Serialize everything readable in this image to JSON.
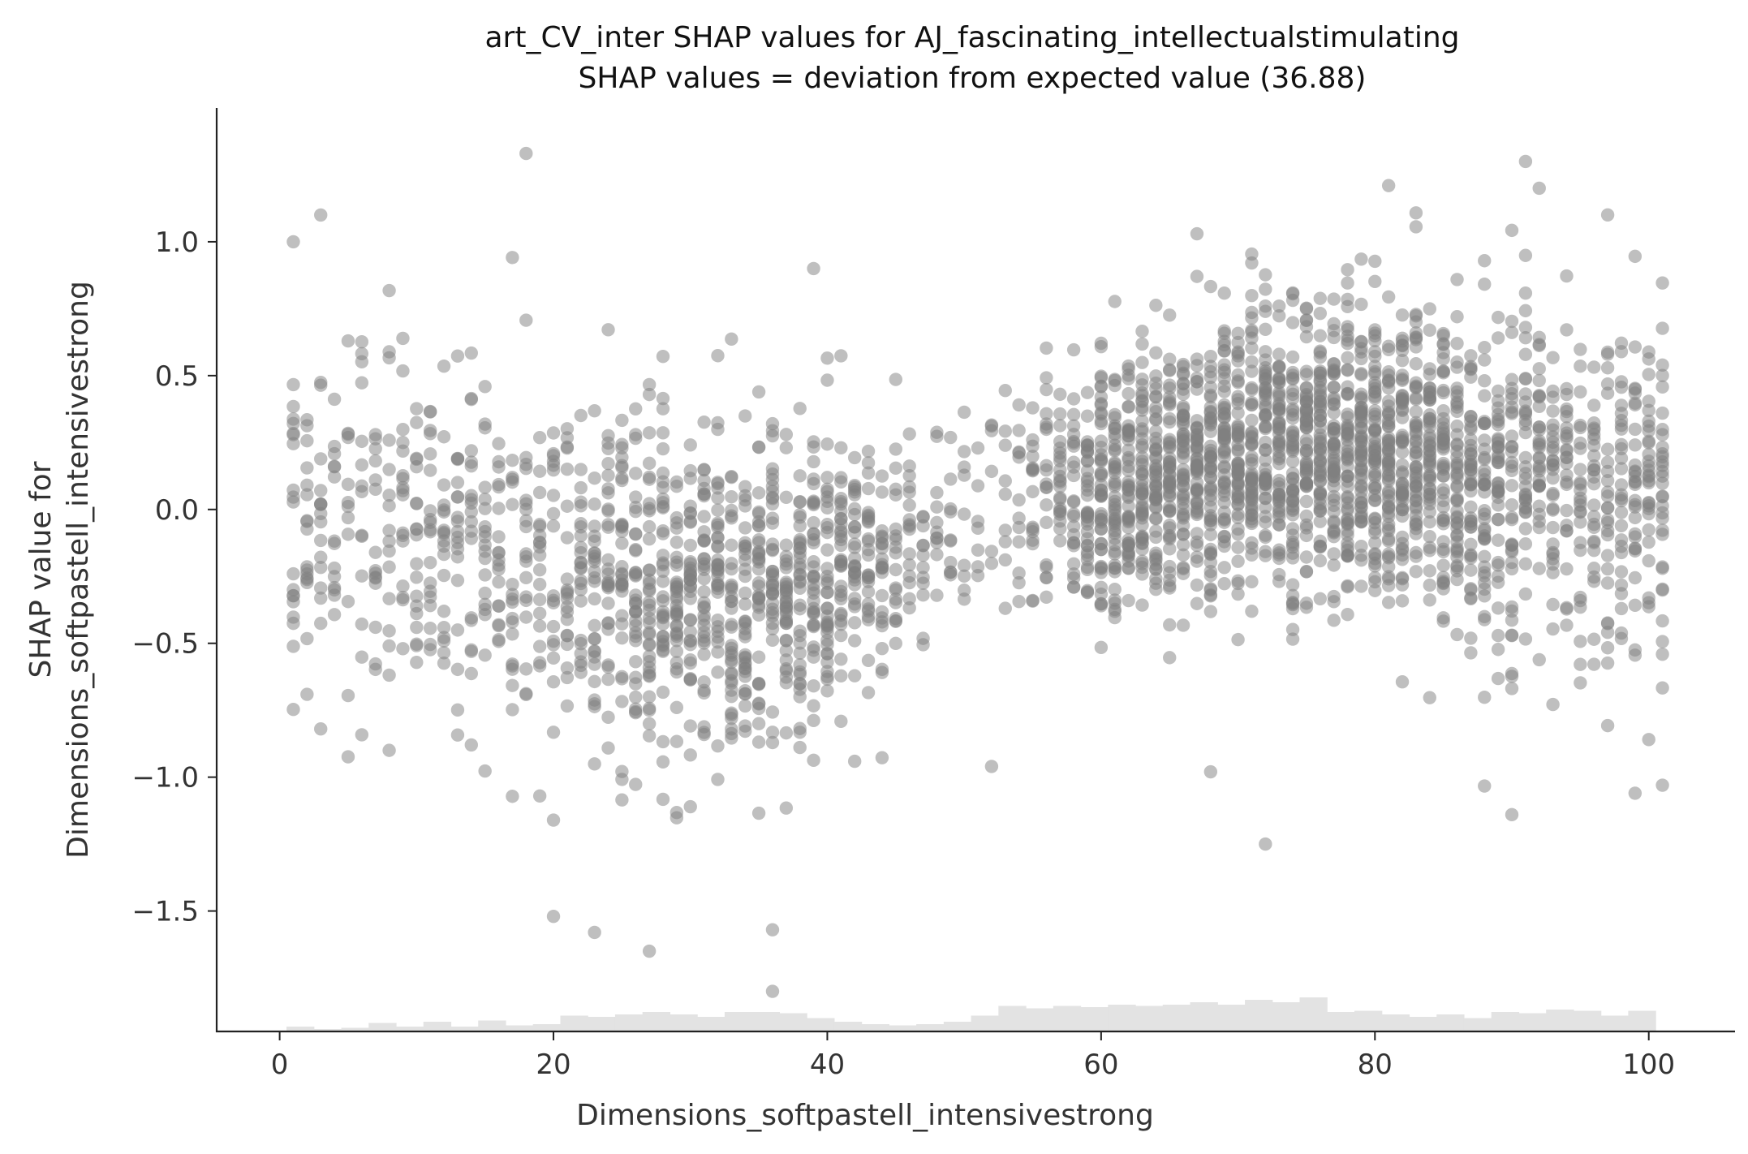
{
  "chart_data": {
    "type": "scatter",
    "title_line1": "art_CV_inter SHAP values for AJ_fascinating_intellectualstimulating",
    "title_line2": "SHAP values = deviation from expected value (36.88)",
    "xlabel": "Dimensions_softpastell_intensivestrong",
    "ylabel_line1": "SHAP value for",
    "ylabel_line2": "Dimensions_softpastell_intensivestrong",
    "xlim": [
      -4.6,
      106.3
    ],
    "ylim": [
      -1.95,
      1.5
    ],
    "x_ticks": [
      0,
      20,
      40,
      60,
      80,
      100
    ],
    "x_tick_labels": [
      "0",
      "20",
      "40",
      "60",
      "80",
      "100"
    ],
    "y_ticks": [
      1.0,
      0.5,
      0.0,
      -0.5,
      -1.0,
      -1.5
    ],
    "y_tick_labels": [
      "1.0",
      "0.5",
      "0.0",
      "−0.5",
      "−1.0",
      "−1.5"
    ],
    "grid": false,
    "legend": "none",
    "point_color": "#7f7f7f",
    "histogram_color": "#e3e3e3",
    "x_range_of_points": [
      1,
      101
    ],
    "trend_knots": {
      "x": [
        1,
        10,
        20,
        30,
        38,
        45,
        50,
        55,
        60,
        70,
        78,
        85,
        95,
        101
      ],
      "y": [
        -0.05,
        -0.08,
        -0.2,
        -0.3,
        -0.28,
        -0.15,
        -0.02,
        0.05,
        0.08,
        0.2,
        0.25,
        0.15,
        0.08,
        0.05
      ]
    },
    "spread_knots": {
      "x": [
        1,
        20,
        35,
        45,
        50,
        60,
        80,
        101
      ],
      "y": [
        0.36,
        0.34,
        0.33,
        0.22,
        0.18,
        0.24,
        0.27,
        0.34
      ]
    },
    "density_knots": {
      "x": [
        1,
        5,
        10,
        20,
        27,
        40,
        47,
        52,
        58,
        60,
        70,
        80,
        85,
        95,
        101
      ],
      "y": [
        3,
        2,
        3,
        3,
        6,
        6,
        2,
        1,
        4,
        8,
        9,
        10,
        8,
        4,
        5
      ]
    },
    "notable_points": [
      {
        "x": 18,
        "y": 1.33
      },
      {
        "x": 91,
        "y": 1.3
      },
      {
        "x": 92,
        "y": 1.2
      },
      {
        "x": 81,
        "y": 1.21
      },
      {
        "x": 3,
        "y": 1.1
      },
      {
        "x": 36,
        "y": -1.8
      },
      {
        "x": 27,
        "y": -1.65
      },
      {
        "x": 20,
        "y": -1.52
      },
      {
        "x": 36,
        "y": -1.57
      },
      {
        "x": 23,
        "y": -1.58
      },
      {
        "x": 72,
        "y": -1.25
      },
      {
        "x": 99,
        "y": -1.06
      },
      {
        "x": 101,
        "y": -1.03
      },
      {
        "x": 52,
        "y": -0.96
      },
      {
        "x": 68,
        "y": -0.98
      },
      {
        "x": 1,
        "y": 1.0
      },
      {
        "x": 67,
        "y": 1.03
      },
      {
        "x": 39,
        "y": 0.9
      }
    ],
    "histogram": {
      "bin_width": 2,
      "start": 0.5,
      "counts": [
        4,
        2,
        3,
        7,
        4,
        8,
        4,
        9,
        5,
        6,
        13,
        12,
        14,
        16,
        14,
        12,
        16,
        16,
        15,
        11,
        8,
        6,
        5,
        6,
        8,
        13,
        21,
        19,
        21,
        20,
        22,
        21,
        22,
        24,
        22,
        26,
        24,
        28,
        16,
        17,
        14,
        12,
        14,
        11,
        16,
        15,
        18,
        17,
        13,
        17
      ]
    }
  }
}
